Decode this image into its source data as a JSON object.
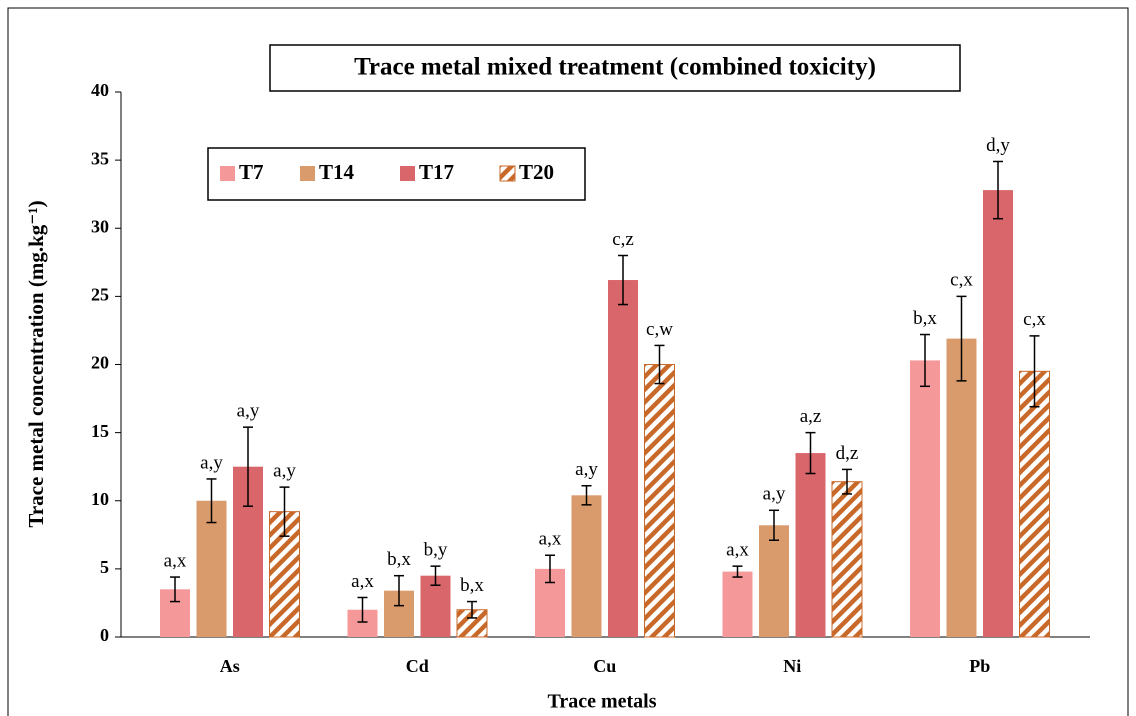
{
  "chart_data": {
    "type": "bar",
    "title": "Trace metal mixed treatment (combined toxicity)",
    "xlabel": "Trace metals",
    "ylabel": "Trace metal concentration (mg.kg⁻¹)",
    "categories": [
      "As",
      "Cd",
      "Cu",
      "Ni",
      "Pb"
    ],
    "series": [
      {
        "name": "T7",
        "color": "#f4989a",
        "pattern": "solid",
        "values": [
          3.5,
          2.0,
          5.0,
          4.8,
          20.3
        ],
        "errors": [
          0.9,
          0.9,
          1.0,
          0.4,
          1.9
        ],
        "annotations": [
          "a,x",
          "a,x",
          "a,x",
          "a,x",
          "b,x"
        ]
      },
      {
        "name": "T14",
        "color": "#d99a6c",
        "pattern": "solid",
        "values": [
          10.0,
          3.4,
          10.4,
          8.2,
          21.9
        ],
        "errors": [
          1.6,
          1.1,
          0.7,
          1.1,
          3.1
        ],
        "annotations": [
          "a,y",
          "b,x",
          "a,y",
          "a,y",
          "c,x"
        ]
      },
      {
        "name": "T17",
        "color": "#d9666a",
        "pattern": "solid",
        "values": [
          12.5,
          4.5,
          26.2,
          13.5,
          32.8
        ],
        "errors": [
          2.9,
          0.7,
          1.8,
          1.5,
          2.1
        ],
        "annotations": [
          "a,y",
          "b,y",
          "c,z",
          "a,z",
          "d,y"
        ]
      },
      {
        "name": "T20",
        "color": "#c8692a",
        "pattern": "hatch",
        "values": [
          9.2,
          2.0,
          20.0,
          11.4,
          19.5
        ],
        "errors": [
          1.8,
          0.6,
          1.4,
          0.9,
          2.6
        ],
        "annotations": [
          "a,y",
          "b,x",
          "c,w",
          "d,z",
          "c,x"
        ]
      }
    ],
    "ylim": [
      0,
      40
    ],
    "yticks": [
      0,
      5,
      10,
      15,
      20,
      25,
      30,
      35,
      40
    ],
    "grid": false,
    "legend": "upper left"
  }
}
